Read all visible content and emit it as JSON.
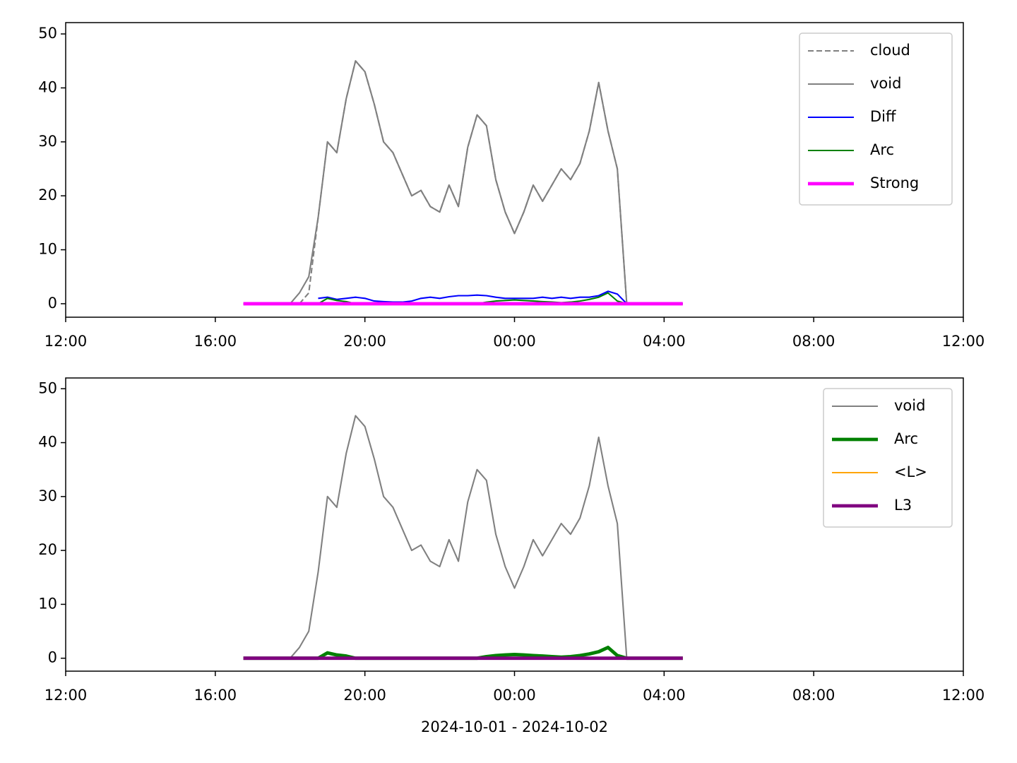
{
  "chart_data": [
    {
      "type": "line",
      "legend": "upper right",
      "ylim": [
        -2.5,
        52.1
      ],
      "yticks": [
        0,
        10,
        20,
        30,
        40,
        50
      ],
      "xlim": [
        "2024-10-01T12:00",
        "2024-10-02T12:00"
      ],
      "xticks": [
        {
          "value": "2024-10-01T12:00",
          "label": "12:00"
        },
        {
          "value": "2024-10-01T16:00",
          "label": "16:00"
        },
        {
          "value": "2024-10-01T20:00",
          "label": "20:00"
        },
        {
          "value": "2024-10-02T00:00",
          "label": "00:00"
        },
        {
          "value": "2024-10-02T04:00",
          "label": "04:00"
        },
        {
          "value": "2024-10-02T08:00",
          "label": "08:00"
        },
        {
          "value": "2024-10-02T12:00",
          "label": "12:00"
        }
      ],
      "x": [
        "2024-10-01T16:45",
        "2024-10-01T17:00",
        "2024-10-01T17:15",
        "2024-10-01T17:30",
        "2024-10-01T17:45",
        "2024-10-01T18:00",
        "2024-10-01T18:15",
        "2024-10-01T18:30",
        "2024-10-01T18:45",
        "2024-10-01T19:00",
        "2024-10-01T19:15",
        "2024-10-01T19:30",
        "2024-10-01T19:45",
        "2024-10-01T20:00",
        "2024-10-01T20:15",
        "2024-10-01T20:30",
        "2024-10-01T20:45",
        "2024-10-01T21:00",
        "2024-10-01T21:15",
        "2024-10-01T21:30",
        "2024-10-01T21:45",
        "2024-10-01T22:00",
        "2024-10-01T22:15",
        "2024-10-01T22:30",
        "2024-10-01T22:45",
        "2024-10-01T23:00",
        "2024-10-01T23:15",
        "2024-10-01T23:30",
        "2024-10-01T23:45",
        "2024-10-02T00:00",
        "2024-10-02T00:15",
        "2024-10-02T00:30",
        "2024-10-02T00:45",
        "2024-10-02T01:00",
        "2024-10-02T01:15",
        "2024-10-02T01:30",
        "2024-10-02T01:45",
        "2024-10-02T02:00",
        "2024-10-02T02:15",
        "2024-10-02T02:30",
        "2024-10-02T02:45",
        "2024-10-02T03:00",
        "2024-10-02T03:15",
        "2024-10-02T03:30",
        "2024-10-02T03:45",
        "2024-10-02T04:00",
        "2024-10-02T04:15",
        "2024-10-02T04:30"
      ],
      "series": [
        {
          "name": "cloud",
          "color": "#808080",
          "linestyle": "dashed",
          "linewidth": 1.5,
          "values": [
            null,
            null,
            null,
            null,
            null,
            null,
            0,
            2,
            16,
            30,
            28,
            38,
            45,
            43,
            37,
            30,
            28,
            24,
            20,
            21,
            18,
            17,
            22,
            18,
            29,
            35,
            33,
            23,
            17,
            13,
            17,
            22,
            19,
            22,
            25,
            23,
            26,
            32,
            41,
            32,
            25,
            0,
            null,
            null,
            null,
            null,
            null,
            null
          ]
        },
        {
          "name": "void",
          "color": "#808080",
          "linestyle": "solid",
          "linewidth": 1.5,
          "values": [
            null,
            null,
            null,
            null,
            null,
            0,
            2,
            5,
            16,
            30,
            28,
            38,
            45,
            43,
            37,
            30,
            28,
            24,
            20,
            21,
            18,
            17,
            22,
            18,
            29,
            35,
            33,
            23,
            17,
            13,
            17,
            22,
            19,
            22,
            25,
            23,
            26,
            32,
            41,
            32,
            25,
            0,
            null,
            null,
            null,
            null,
            null,
            null
          ]
        },
        {
          "name": "Diff",
          "color": "#0000ff",
          "linestyle": "solid",
          "linewidth": 1.5,
          "values": [
            null,
            null,
            null,
            null,
            null,
            null,
            null,
            null,
            1,
            1.2,
            0.8,
            1,
            1.2,
            1,
            0.5,
            0.4,
            0.3,
            0.3,
            0.5,
            1,
            1.2,
            1,
            1.3,
            1.5,
            1.5,
            1.6,
            1.5,
            1.2,
            1,
            1,
            1,
            1,
            1.2,
            1,
            1.2,
            1,
            1.2,
            1.2,
            1.5,
            2.3,
            1.8,
            0,
            null,
            null,
            null,
            null,
            null,
            null
          ]
        },
        {
          "name": "Arc",
          "color": "#008000",
          "linestyle": "solid",
          "linewidth": 1.5,
          "values": [
            0,
            0,
            0,
            0,
            0,
            0,
            0,
            0,
            0,
            1,
            0.6,
            0.4,
            0,
            0,
            0,
            0,
            0,
            0,
            0,
            0,
            0,
            0,
            0,
            0,
            0,
            0,
            0.3,
            0.5,
            0.6,
            0.7,
            0.6,
            0.5,
            0.4,
            0.3,
            0.2,
            0.3,
            0.5,
            0.8,
            1.2,
            2,
            0.5,
            0,
            0,
            0,
            0,
            0,
            0,
            0
          ]
        },
        {
          "name": "Strong",
          "color": "#ff00ff",
          "linestyle": "solid",
          "linewidth": 3.5,
          "values": [
            0,
            0,
            0,
            0,
            0,
            0,
            0,
            0,
            0,
            0,
            0,
            0,
            0,
            0,
            0,
            0,
            0,
            0,
            0,
            0,
            0,
            0,
            0,
            0,
            0,
            0,
            0,
            0,
            0,
            0,
            0,
            0,
            0,
            0,
            0,
            0,
            0,
            0,
            0,
            0,
            0,
            0,
            0,
            0,
            0,
            0,
            0,
            0
          ]
        }
      ]
    },
    {
      "type": "line",
      "legend": "upper right",
      "ylim": [
        -2.4,
        52.0
      ],
      "yticks": [
        0,
        10,
        20,
        30,
        40,
        50
      ],
      "xlim": [
        "2024-10-01T12:00",
        "2024-10-02T12:00"
      ],
      "xticks": [
        {
          "value": "2024-10-01T12:00",
          "label": "12:00"
        },
        {
          "value": "2024-10-01T16:00",
          "label": "16:00"
        },
        {
          "value": "2024-10-01T20:00",
          "label": "20:00"
        },
        {
          "value": "2024-10-02T00:00",
          "label": "00:00"
        },
        {
          "value": "2024-10-02T04:00",
          "label": "04:00"
        },
        {
          "value": "2024-10-02T08:00",
          "label": "08:00"
        },
        {
          "value": "2024-10-02T12:00",
          "label": "12:00"
        }
      ],
      "xlabel": "2024-10-01 - 2024-10-02",
      "x": [
        "2024-10-01T16:45",
        "2024-10-01T17:00",
        "2024-10-01T17:15",
        "2024-10-01T17:30",
        "2024-10-01T17:45",
        "2024-10-01T18:00",
        "2024-10-01T18:15",
        "2024-10-01T18:30",
        "2024-10-01T18:45",
        "2024-10-01T19:00",
        "2024-10-01T19:15",
        "2024-10-01T19:30",
        "2024-10-01T19:45",
        "2024-10-01T20:00",
        "2024-10-01T20:15",
        "2024-10-01T20:30",
        "2024-10-01T20:45",
        "2024-10-01T21:00",
        "2024-10-01T21:15",
        "2024-10-01T21:30",
        "2024-10-01T21:45",
        "2024-10-01T22:00",
        "2024-10-01T22:15",
        "2024-10-01T22:30",
        "2024-10-01T22:45",
        "2024-10-01T23:00",
        "2024-10-01T23:15",
        "2024-10-01T23:30",
        "2024-10-01T23:45",
        "2024-10-02T00:00",
        "2024-10-02T00:15",
        "2024-10-02T00:30",
        "2024-10-02T00:45",
        "2024-10-02T01:00",
        "2024-10-02T01:15",
        "2024-10-02T01:30",
        "2024-10-02T01:45",
        "2024-10-02T02:00",
        "2024-10-02T02:15",
        "2024-10-02T02:30",
        "2024-10-02T02:45",
        "2024-10-02T03:00",
        "2024-10-02T03:15",
        "2024-10-02T03:30",
        "2024-10-02T03:45",
        "2024-10-02T04:00",
        "2024-10-02T04:15",
        "2024-10-02T04:30"
      ],
      "series": [
        {
          "name": "void",
          "color": "#808080",
          "linestyle": "solid",
          "linewidth": 1.5,
          "values": [
            null,
            null,
            null,
            null,
            null,
            0,
            2,
            5,
            16,
            30,
            28,
            38,
            45,
            43,
            37,
            30,
            28,
            24,
            20,
            21,
            18,
            17,
            22,
            18,
            29,
            35,
            33,
            23,
            17,
            13,
            17,
            22,
            19,
            22,
            25,
            23,
            26,
            32,
            41,
            32,
            25,
            0,
            null,
            null,
            null,
            null,
            null,
            null
          ]
        },
        {
          "name": "Arc",
          "color": "#008000",
          "linestyle": "solid",
          "linewidth": 3.5,
          "values": [
            0,
            0,
            0,
            0,
            0,
            0,
            0,
            0,
            0,
            1,
            0.6,
            0.4,
            0,
            0,
            0,
            0,
            0,
            0,
            0,
            0,
            0,
            0,
            0,
            0,
            0,
            0,
            0.3,
            0.5,
            0.6,
            0.7,
            0.6,
            0.5,
            0.4,
            0.3,
            0.2,
            0.3,
            0.5,
            0.8,
            1.2,
            2,
            0.5,
            0,
            0,
            0,
            0,
            0,
            0,
            0
          ]
        },
        {
          "name": "<L>",
          "color": "#ffa500",
          "linestyle": "solid",
          "linewidth": 1.5,
          "values": [
            0,
            0,
            0,
            0,
            0,
            0,
            0,
            0,
            0,
            0,
            0,
            0,
            0,
            0,
            0,
            0,
            0,
            0,
            0,
            0,
            0,
            0,
            0,
            0,
            0,
            0,
            0,
            0,
            0,
            0,
            0,
            0,
            0,
            0,
            0,
            0,
            0,
            0,
            0,
            0,
            0,
            0,
            0,
            0,
            0,
            0,
            0,
            0
          ]
        },
        {
          "name": "L3",
          "color": "#800080",
          "linestyle": "solid",
          "linewidth": 3.5,
          "values": [
            0,
            0,
            0,
            0,
            0,
            0,
            0,
            0,
            0,
            0,
            0,
            0,
            0,
            0,
            0,
            0,
            0,
            0,
            0,
            0,
            0,
            0,
            0,
            0,
            0,
            0,
            0,
            0,
            0,
            0,
            0,
            0,
            0,
            0,
            0,
            0,
            0,
            0,
            0,
            0,
            0,
            0,
            0,
            0,
            0,
            0,
            0,
            0
          ]
        }
      ]
    }
  ]
}
